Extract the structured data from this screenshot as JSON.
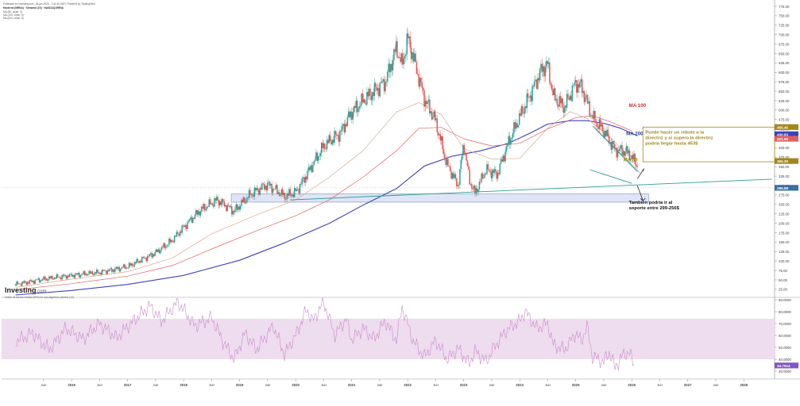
{
  "header": {
    "published": "Publicado en investing.com, 18-jun-2025 - 7:41:25 GMT, Powered by TradingView",
    "symbol": "Moderna (MRNA) · Semanal (1S) · NASDAQ:MRNA",
    "ma_lines": [
      "MA (50, close, 0)",
      "MA (100, close, 0)",
      "MA (200, close, 0)"
    ]
  },
  "logo": {
    "name": "Investing",
    "domain": ".com"
  },
  "colors": {
    "up_candle": "#26a69a",
    "down_candle": "#ef5350",
    "ma50": "#d9a98a",
    "ma100": "#e06060",
    "ma200": "#3d41b8",
    "trendline": "#2a9d8f",
    "support_zone": "#c9d3f0",
    "rsi_band": "#eedcef",
    "rsi_line": "#c98bc9",
    "annotation_box": "#a2861b",
    "price_badge": "#3a6fa0"
  },
  "chart_data": [
    {
      "type": "candlestick",
      "title": "",
      "ylabel": "",
      "ylim": [
        0,
        750
      ],
      "y_ticks": [
        "775.00",
        "750.00",
        "725.00",
        "700.00",
        "675.00",
        "650.00",
        "625.00",
        "600.00",
        "575.00",
        "550.00",
        "525.00",
        "500.00",
        "475.00",
        "450.00",
        "425.00",
        "400.00",
        "375.00",
        "350.00",
        "325.00",
        "300.00",
        "275.00",
        "250.00",
        "225.00",
        "200.00",
        "175.00",
        "150.00",
        "125.00",
        "100.00",
        "75.00",
        "50.00",
        "25.00"
      ],
      "x_ticks": [
        "Jun",
        "2016",
        "Jun",
        "2017",
        "Jun",
        "2018",
        "Jun",
        "2019",
        "Jun",
        "2020",
        "Jun",
        "2021",
        "Jun",
        "2022",
        "Jun",
        "2023",
        "Jun",
        "2024",
        "Jun",
        "2025",
        "Jun",
        "2026",
        "Jun",
        "2027",
        "Jun",
        "2028"
      ],
      "price_path": [
        [
          2015.0,
          38
        ],
        [
          2015.5,
          52
        ],
        [
          2016.0,
          62
        ],
        [
          2016.5,
          70
        ],
        [
          2017.0,
          85
        ],
        [
          2017.5,
          122
        ],
        [
          2017.8,
          155
        ],
        [
          2018.0,
          190
        ],
        [
          2018.3,
          235
        ],
        [
          2018.6,
          262
        ],
        [
          2018.9,
          232
        ],
        [
          2019.2,
          278
        ],
        [
          2019.5,
          303
        ],
        [
          2019.8,
          272
        ],
        [
          2020.0,
          282
        ],
        [
          2020.2,
          330
        ],
        [
          2020.5,
          405
        ],
        [
          2020.8,
          440
        ],
        [
          2021.0,
          495
        ],
        [
          2021.3,
          538
        ],
        [
          2021.6,
          575
        ],
        [
          2021.8,
          665
        ],
        [
          2021.9,
          618
        ],
        [
          2022.0,
          692
        ],
        [
          2022.1,
          640
        ],
        [
          2022.3,
          530
        ],
        [
          2022.5,
          470
        ],
        [
          2022.7,
          356
        ],
        [
          2022.9,
          300
        ],
        [
          2023.0,
          412
        ],
        [
          2023.1,
          315
        ],
        [
          2023.2,
          280
        ],
        [
          2023.4,
          342
        ],
        [
          2023.6,
          330
        ],
        [
          2023.8,
          415
        ],
        [
          2024.0,
          482
        ],
        [
          2024.2,
          545
        ],
        [
          2024.4,
          610
        ],
        [
          2024.5,
          620
        ],
        [
          2024.6,
          535
        ],
        [
          2024.8,
          508
        ],
        [
          2025.0,
          572
        ],
        [
          2025.1,
          562
        ],
        [
          2025.3,
          480
        ],
        [
          2025.5,
          445
        ],
        [
          2025.7,
          395
        ],
        [
          2025.9,
          390
        ],
        [
          2026.0,
          376
        ],
        [
          2026.1,
          353
        ]
      ],
      "ma50": [
        [
          2015.0,
          30
        ],
        [
          2016.0,
          52
        ],
        [
          2017.0,
          72
        ],
        [
          2017.8,
          108
        ],
        [
          2018.5,
          172
        ],
        [
          2019.3,
          222
        ],
        [
          2020.0,
          262
        ],
        [
          2020.6,
          322
        ],
        [
          2021.2,
          392
        ],
        [
          2021.8,
          495
        ],
        [
          2022.2,
          520
        ],
        [
          2022.6,
          488
        ],
        [
          2023.0,
          398
        ],
        [
          2023.5,
          370
        ],
        [
          2024.0,
          372
        ],
        [
          2024.5,
          452
        ],
        [
          2024.9,
          496
        ],
        [
          2025.2,
          478
        ],
        [
          2025.6,
          430
        ],
        [
          2025.9,
          386
        ],
        [
          2026.1,
          368
        ]
      ],
      "ma100": [
        [
          2015.0,
          24
        ],
        [
          2016.0,
          40
        ],
        [
          2017.0,
          60
        ],
        [
          2017.8,
          88
        ],
        [
          2018.5,
          132
        ],
        [
          2019.3,
          180
        ],
        [
          2020.0,
          220
        ],
        [
          2020.6,
          262
        ],
        [
          2021.2,
          322
        ],
        [
          2021.8,
          392
        ],
        [
          2022.2,
          452
        ],
        [
          2022.6,
          454
        ],
        [
          2023.0,
          424
        ],
        [
          2023.5,
          405
        ],
        [
          2024.0,
          412
        ],
        [
          2024.5,
          450
        ],
        [
          2025.0,
          480
        ],
        [
          2025.3,
          485
        ],
        [
          2025.6,
          470
        ],
        [
          2026.0,
          445
        ]
      ],
      "ma200": [
        [
          2015.0,
          10
        ],
        [
          2016.0,
          22
        ],
        [
          2017.0,
          38
        ],
        [
          2018.0,
          62
        ],
        [
          2019.0,
          102
        ],
        [
          2019.8,
          148
        ],
        [
          2020.6,
          200
        ],
        [
          2021.2,
          248
        ],
        [
          2021.8,
          292
        ],
        [
          2022.3,
          352
        ],
        [
          2022.8,
          378
        ],
        [
          2023.3,
          392
        ],
        [
          2023.8,
          412
        ],
        [
          2024.2,
          440
        ],
        [
          2024.5,
          463
        ],
        [
          2024.9,
          472
        ],
        [
          2025.2,
          472
        ],
        [
          2025.5,
          465
        ],
        [
          2025.8,
          452
        ],
        [
          2026.1,
          432
        ]
      ],
      "uptrend_line": [
        [
          2019.9,
          262
        ],
        [
          2028.5,
          317
        ]
      ],
      "downtrend_channel": {
        "upper": [
          [
            2025.3,
            458
          ],
          [
            2026.1,
            337
          ]
        ],
        "upper2": [
          [
            2025.35,
            452
          ],
          [
            2026.15,
            333
          ]
        ],
        "lower": [
          [
            2025.25,
            342
          ],
          [
            2026.0,
            306
          ]
        ]
      },
      "support_zone": {
        "x": [
          2018.85,
          2026.3
        ],
        "y": [
          256,
          278
        ]
      },
      "price_tags": [
        {
          "value": "455.45",
          "y": 455,
          "color": "#a2861b"
        },
        {
          "value": "430.83",
          "y": 436,
          "color": "#3d41b8"
        },
        {
          "value": "421.50",
          "y": 424,
          "color": "#e06060"
        },
        {
          "value": "365.30",
          "y": 365,
          "color": "#a2861b"
        },
        {
          "value": "296.88",
          "y": 294,
          "color": "#3a6fa0"
        }
      ],
      "labels": [
        {
          "text": "MA 100",
          "color": "#cc2a2a",
          "x": 2025.95,
          "y": 508
        },
        {
          "text": "MA 200",
          "color": "#2a3f9c",
          "x": 2025.9,
          "y": 433
        },
        {
          "text": "MA 50",
          "color": "#a2861b",
          "x": 2025.85,
          "y": 364
        }
      ],
      "annotations": [
        {
          "lines": [
            "Puede hacer un rebote a la",
            "directriz y si supero la directriz",
            "podría llegar hasta 453$"
          ],
          "color": "#a2861b"
        },
        {
          "lines": [
            "También podría ir al",
            "soporte entre 299-256$"
          ],
          "color": "#111111"
        }
      ]
    },
    {
      "type": "line",
      "title": "Índice de fuerza relativa (RSI) en sus algoritmo (cierre) (14)",
      "ylim": [
        30,
        90
      ],
      "y_ticks": [
        "90.0000",
        "80.0000",
        "70.0000",
        "60.0000",
        "50.0000",
        "40.0000",
        "30.0000"
      ],
      "band": [
        40,
        74
      ],
      "last_value": "34.7514",
      "series": [
        {
          "values": [
            [
              2015.0,
              55
            ],
            [
              2015.3,
              62
            ],
            [
              2015.6,
              48
            ],
            [
              2015.9,
              66
            ],
            [
              2016.2,
              57
            ],
            [
              2016.5,
              70
            ],
            [
              2016.8,
              58
            ],
            [
              2017.1,
              72
            ],
            [
              2017.4,
              85
            ],
            [
              2017.6,
              72
            ],
            [
              2017.9,
              88
            ],
            [
              2018.2,
              68
            ],
            [
              2018.5,
              75
            ],
            [
              2018.7,
              55
            ],
            [
              2018.9,
              40
            ],
            [
              2019.1,
              62
            ],
            [
              2019.3,
              48
            ],
            [
              2019.6,
              68
            ],
            [
              2019.8,
              44
            ],
            [
              2020.0,
              60
            ],
            [
              2020.2,
              82
            ],
            [
              2020.3,
              72
            ],
            [
              2020.5,
              88
            ],
            [
              2020.7,
              60
            ],
            [
              2020.9,
              74
            ],
            [
              2021.0,
              56
            ],
            [
              2021.2,
              66
            ],
            [
              2021.4,
              57
            ],
            [
              2021.6,
              72
            ],
            [
              2021.8,
              56
            ],
            [
              2021.9,
              84
            ],
            [
              2022.1,
              55
            ],
            [
              2022.3,
              42
            ],
            [
              2022.5,
              56
            ],
            [
              2022.7,
              40
            ],
            [
              2022.9,
              49
            ],
            [
              2023.1,
              36
            ],
            [
              2023.2,
              47
            ],
            [
              2023.4,
              38
            ],
            [
              2023.6,
              54
            ],
            [
              2023.8,
              66
            ],
            [
              2024.0,
              72
            ],
            [
              2024.1,
              80
            ],
            [
              2024.3,
              66
            ],
            [
              2024.5,
              70
            ],
            [
              2024.6,
              52
            ],
            [
              2024.8,
              48
            ],
            [
              2025.0,
              62
            ],
            [
              2025.1,
              55
            ],
            [
              2025.2,
              68
            ],
            [
              2025.3,
              42
            ],
            [
              2025.5,
              38
            ],
            [
              2025.6,
              46
            ],
            [
              2025.7,
              33
            ],
            [
              2025.85,
              44
            ],
            [
              2025.95,
              46
            ],
            [
              2026.05,
              35
            ]
          ]
        }
      ]
    }
  ]
}
